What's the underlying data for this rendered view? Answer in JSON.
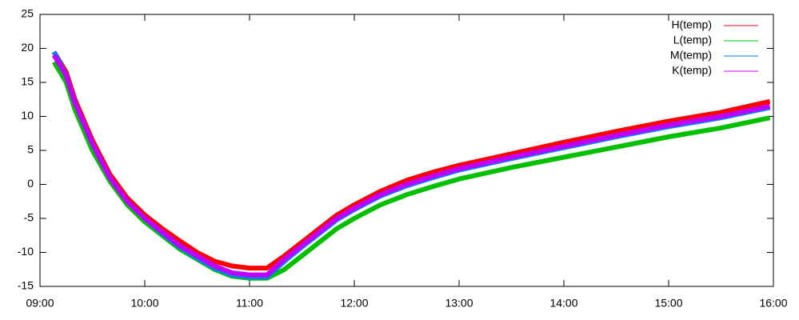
{
  "chart_data": {
    "type": "line",
    "x": [
      "09:08",
      "09:15",
      "09:20",
      "09:30",
      "09:40",
      "09:50",
      "10:00",
      "10:10",
      "10:20",
      "10:30",
      "10:40",
      "10:50",
      "11:00",
      "11:10",
      "11:20",
      "11:30",
      "11:40",
      "11:50",
      "12:00",
      "12:15",
      "12:30",
      "12:45",
      "13:00",
      "13:30",
      "14:00",
      "14:30",
      "15:00",
      "15:30",
      "15:58"
    ],
    "series": [
      {
        "name": "H(temp)",
        "color": "#ff0000",
        "values": [
          19.5,
          16.5,
          12.5,
          6.5,
          1.5,
          -2,
          -4.5,
          -6.5,
          -8.3,
          -10,
          -11.3,
          -12,
          -12.3,
          -12.3,
          -10.5,
          -8.5,
          -6.5,
          -4.5,
          -3,
          -1,
          0.6,
          1.8,
          2.8,
          4.5,
          6.2,
          7.8,
          9.3,
          10.6,
          12.2
        ]
      },
      {
        "name": "L(temp)",
        "color": "#00c000",
        "values": [
          18,
          15,
          11,
          5,
          0.5,
          -3,
          -5.5,
          -7.5,
          -9.5,
          -11,
          -12.5,
          -13.5,
          -13.8,
          -13.8,
          -12.5,
          -10.5,
          -8.5,
          -6.5,
          -5,
          -3,
          -1.5,
          -0.3,
          0.8,
          2.5,
          4,
          5.5,
          7,
          8.3,
          9.8
        ]
      },
      {
        "name": "M(temp)",
        "color": "#0080ff",
        "values": [
          19.5,
          16,
          12,
          6,
          1,
          -2.5,
          -5,
          -7.2,
          -9.2,
          -10.8,
          -12.3,
          -13.3,
          -13.6,
          -13.6,
          -11.3,
          -9.2,
          -7.2,
          -5.2,
          -3.7,
          -1.7,
          -0.2,
          1,
          2.1,
          3.8,
          5.4,
          7,
          8.5,
          9.8,
          11.3
        ]
      },
      {
        "name": "K(temp)",
        "color": "#c000ff",
        "values": [
          19,
          16,
          12,
          6,
          1,
          -2.5,
          -5,
          -7,
          -9,
          -10.5,
          -12,
          -13,
          -13.3,
          -13.3,
          -11,
          -9,
          -7,
          -5,
          -3.5,
          -1.5,
          0,
          1.2,
          2.3,
          4,
          5.6,
          7.2,
          8.7,
          10,
          11.5
        ]
      }
    ],
    "xlim": [
      "09:00",
      "16:00"
    ],
    "xticks": [
      "09:00",
      "10:00",
      "11:00",
      "12:00",
      "13:00",
      "14:00",
      "15:00",
      "16:00"
    ],
    "ylim": [
      -15,
      25
    ],
    "yticks": [
      -15,
      -10,
      -5,
      0,
      5,
      10,
      15,
      20,
      25
    ],
    "legend": "top-right"
  }
}
